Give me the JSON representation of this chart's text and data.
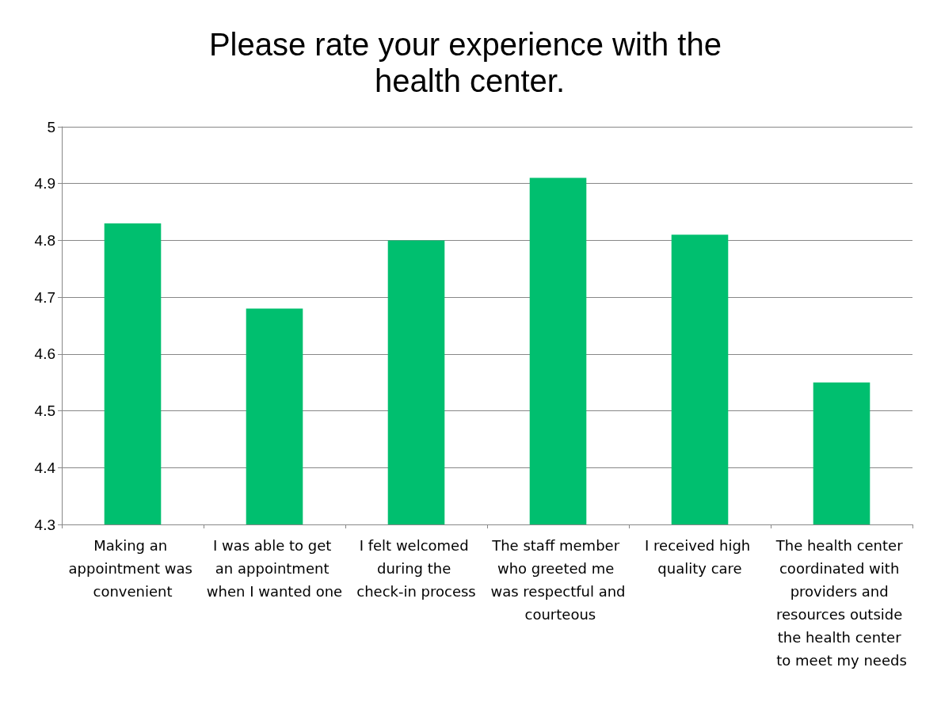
{
  "chart_data": {
    "type": "bar",
    "title": "Please rate your experience with the health center.",
    "categories": [
      "Making an appointment was convenient",
      "I was able to get an appointment when I wanted one",
      "I felt welcomed during the check-in process",
      "The staff member who greeted me was respectful and courteous",
      "I received high quality care",
      "The health center coordinated with providers and resources outside the health center to meet my needs"
    ],
    "values": [
      4.83,
      4.68,
      4.8,
      4.91,
      4.81,
      4.55
    ],
    "color": "#00bf6f",
    "ylim": [
      4.3,
      5
    ],
    "yticks": [
      4.3,
      4.4,
      4.5,
      4.6,
      4.7,
      4.8,
      4.9,
      5
    ],
    "grid": "y"
  }
}
